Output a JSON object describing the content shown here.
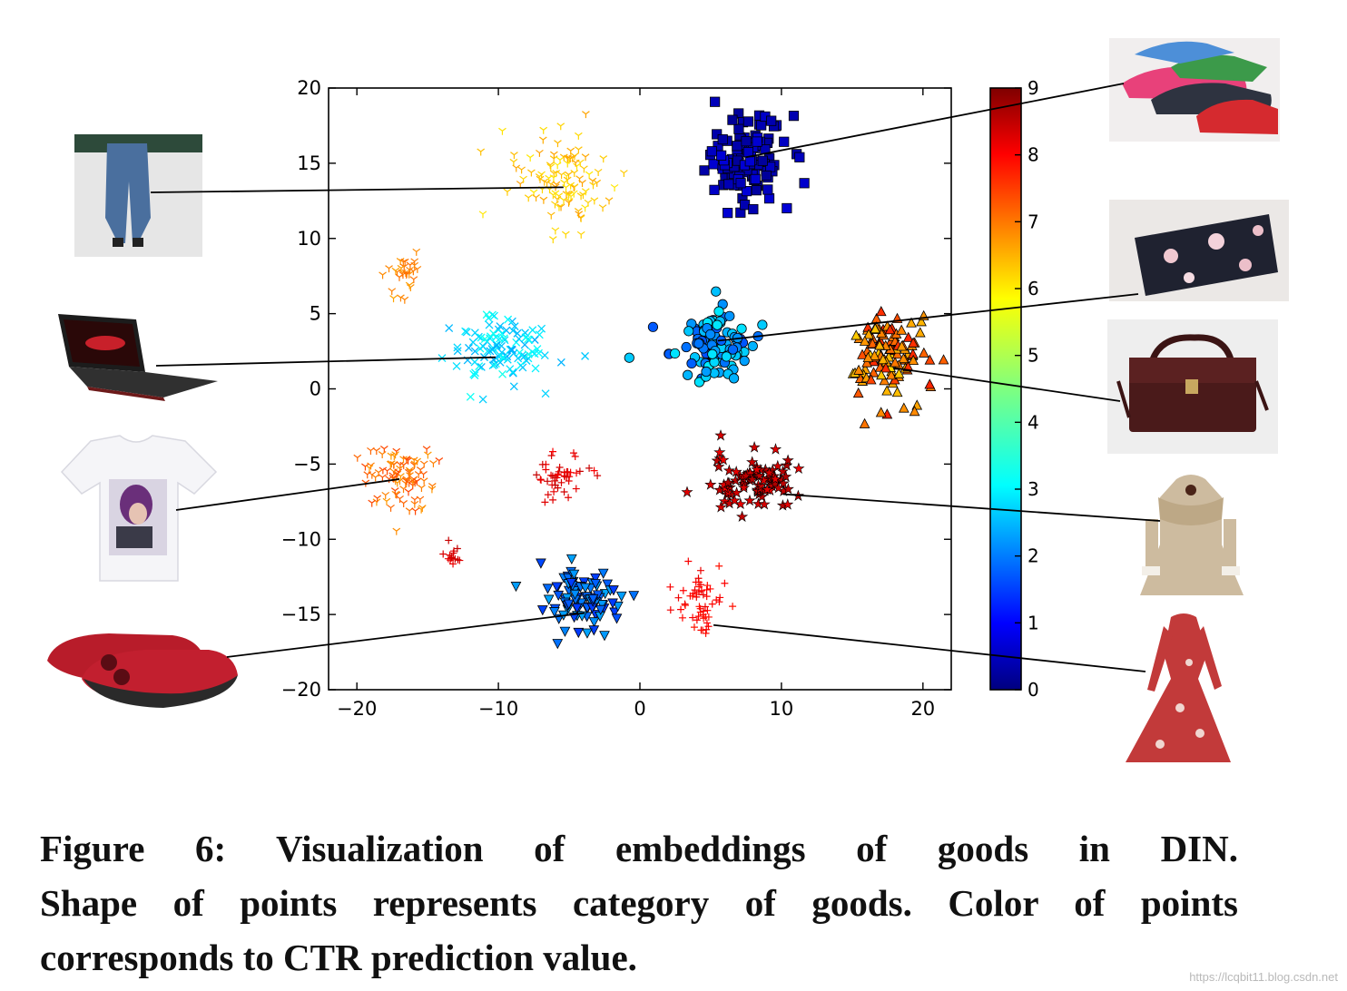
{
  "figure": {
    "caption_lines": [
      "Figure 6: Visualization of embeddings of goods in DIN.",
      "Shape of points represents category of goods. Color of points",
      "corresponds to CTR prediction value."
    ],
    "watermark": "https://lcqbit11.blog.csdn.net"
  },
  "chart_data": {
    "type": "scatter",
    "xlim": [
      -22,
      22
    ],
    "ylim": [
      -20,
      20
    ],
    "xticks": [
      -20,
      -10,
      0,
      10,
      20
    ],
    "yticks": [
      -20,
      -15,
      -10,
      -5,
      0,
      5,
      10,
      15,
      20
    ],
    "xtick_labels": [
      "−20",
      "−10",
      "0",
      "10",
      "20"
    ],
    "ytick_labels": [
      "−20",
      "−15",
      "−10",
      "−5",
      "0",
      "5",
      "10",
      "15",
      "20"
    ],
    "colorbar": {
      "range": [
        0,
        9
      ],
      "ticks": [
        "0",
        "1",
        "2",
        "3",
        "4",
        "5",
        "6",
        "7",
        "8",
        "9"
      ],
      "colormap": "jet"
    },
    "grid": false,
    "clusters": [
      {
        "marker": "square",
        "item": "sneakers",
        "center": [
          7.5,
          15.3
        ],
        "spread": [
          2.6,
          2.7
        ],
        "n": 120,
        "ctr": [
          0.2,
          0.8
        ]
      },
      {
        "marker": "tri_down",
        "item": "jeans",
        "center": [
          -5.5,
          14.0
        ],
        "spread": [
          3.0,
          2.8
        ],
        "n": 110,
        "ctr": [
          5.8,
          6.5
        ]
      },
      {
        "marker": "tri_down",
        "item": "jeans-small-group",
        "center": [
          -17.0,
          7.6
        ],
        "spread": [
          1.0,
          1.7
        ],
        "n": 30,
        "ctr": [
          6.4,
          7.0
        ]
      },
      {
        "marker": "x",
        "item": "laptop",
        "center": [
          -10.0,
          2.6
        ],
        "spread": [
          3.4,
          2.0
        ],
        "n": 110,
        "ctr": [
          2.6,
          3.6
        ]
      },
      {
        "marker": "circle",
        "item": "clutch-bag",
        "center": [
          5.0,
          3.0
        ],
        "spread": [
          2.6,
          2.0
        ],
        "n": 115,
        "ctr": [
          1.8,
          3.2
        ]
      },
      {
        "marker": "triangle_up",
        "item": "handbag",
        "center": [
          17.5,
          2.3
        ],
        "spread": [
          2.6,
          2.5
        ],
        "n": 120,
        "ctr": [
          6.0,
          7.6
        ]
      },
      {
        "marker": "tri_down",
        "item": "t-shirt",
        "center": [
          -17.0,
          -5.9
        ],
        "spread": [
          2.4,
          2.0
        ],
        "n": 95,
        "ctr": [
          6.5,
          7.3
        ]
      },
      {
        "marker": "plus",
        "item": "coat",
        "center": [
          -5.5,
          -5.8
        ],
        "spread": [
          2.0,
          1.3
        ],
        "n": 45,
        "ctr": [
          7.9,
          8.4
        ]
      },
      {
        "marker": "star",
        "item": "coat-dark",
        "center": [
          8.0,
          -6.2
        ],
        "spread": [
          2.7,
          1.6
        ],
        "n": 95,
        "ctr": [
          8.0,
          8.6
        ]
      },
      {
        "marker": "tri_down_fill",
        "item": "slippers",
        "center": [
          -4.0,
          -14.0
        ],
        "spread": [
          2.6,
          1.8
        ],
        "n": 100,
        "ctr": [
          1.6,
          2.6
        ]
      },
      {
        "marker": "plus",
        "item": "dress",
        "center": [
          4.5,
          -14.3
        ],
        "spread": [
          1.8,
          2.3
        ],
        "n": 55,
        "ctr": [
          7.7,
          8.1
        ]
      },
      {
        "marker": "plus",
        "item": "dress-small-group",
        "center": [
          -13.2,
          -11.0
        ],
        "spread": [
          0.5,
          0.7
        ],
        "n": 14,
        "ctr": [
          8.0,
          8.4
        ]
      }
    ],
    "product_pointers": [
      {
        "item": "jeans",
        "data_point": [
          -5.4,
          13.4
        ]
      },
      {
        "item": "laptop",
        "data_point": [
          -10.2,
          2.1
        ]
      },
      {
        "item": "t-shirt",
        "data_point": [
          -17.0,
          -6.0
        ]
      },
      {
        "item": "slippers",
        "data_point": [
          -3.9,
          -14.9
        ]
      },
      {
        "item": "sneakers",
        "data_point": [
          7.5,
          15.4
        ]
      },
      {
        "item": "clutch-bag",
        "data_point": [
          5.5,
          3.2
        ]
      },
      {
        "item": "handbag",
        "data_point": [
          17.9,
          1.4
        ]
      },
      {
        "item": "coat",
        "data_point": [
          10.1,
          -7.0
        ]
      },
      {
        "item": "dress",
        "data_point": [
          5.2,
          -15.7
        ]
      }
    ]
  }
}
